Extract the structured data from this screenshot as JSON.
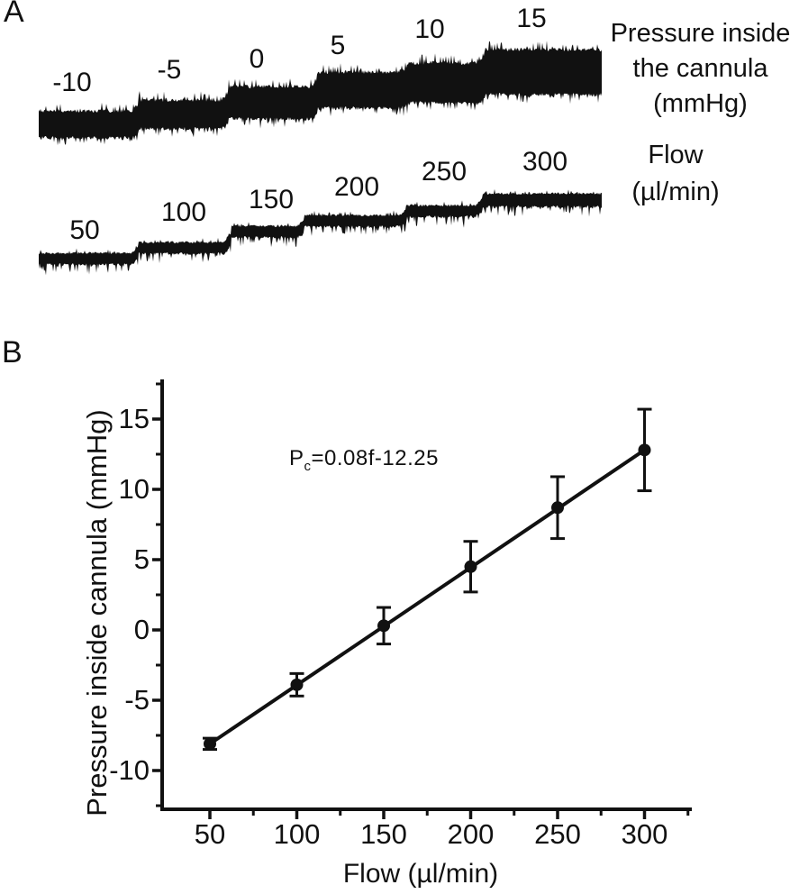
{
  "figure": {
    "panelA": {
      "letter": "A",
      "pressure_caption": [
        "Pressure inside",
        "the cannula",
        "(mmHg)"
      ],
      "flow_caption": [
        "Flow",
        "(µl/min)"
      ]
    },
    "panelB": {
      "letter": "B",
      "equation": {
        "base": "P",
        "sub": "c",
        "rest": "=0.08f-12.25"
      }
    },
    "colors": {
      "ink": "#111111",
      "background": "#ffffff"
    }
  },
  "chart_data": [
    {
      "type": "line",
      "panel": "A",
      "title": "",
      "description": "Two noisy chart-recorder traces with stepwise increases",
      "series": [
        {
          "name": "Pressure inside the cannula (mmHg)",
          "step_labels": [
            "-10",
            "-5",
            "0",
            "5",
            "10",
            "15"
          ],
          "step_values": [
            -10,
            -5,
            0,
            5,
            10,
            15
          ]
        },
        {
          "name": "Flow (µl/min)",
          "step_labels": [
            "50",
            "100",
            "150",
            "200",
            "250",
            "300"
          ],
          "step_values": [
            50,
            100,
            150,
            200,
            250,
            300
          ]
        }
      ]
    },
    {
      "type": "scatter",
      "panel": "B",
      "x": [
        50,
        100,
        150,
        200,
        250,
        300
      ],
      "y": [
        -8.1,
        -3.9,
        0.3,
        4.5,
        8.7,
        12.8
      ],
      "y_err": [
        0.4,
        0.8,
        1.3,
        1.8,
        2.2,
        2.9
      ],
      "fit": {
        "slope": 0.08,
        "intercept": -12.25,
        "label": "Pc=0.08f-12.25"
      },
      "xlabel": "Flow (µl/min)",
      "ylabel": "Pressure inside cannula (mmHg)",
      "x_ticks": [
        50,
        100,
        150,
        200,
        250,
        300
      ],
      "x_minor_ticks": [
        75,
        125,
        175,
        225,
        275,
        325
      ],
      "y_ticks": [
        15,
        10,
        5,
        0,
        -5,
        -10
      ],
      "y_minor_ticks": [
        17.5,
        12.5,
        7.5,
        2.5,
        -2.5,
        -7.5,
        -12.5
      ],
      "xlim": [
        22,
        327
      ],
      "ylim": [
        -12.9,
        17.8
      ],
      "grid": false,
      "legend": false,
      "marker": "filled-circle",
      "line_between_points": true
    }
  ]
}
